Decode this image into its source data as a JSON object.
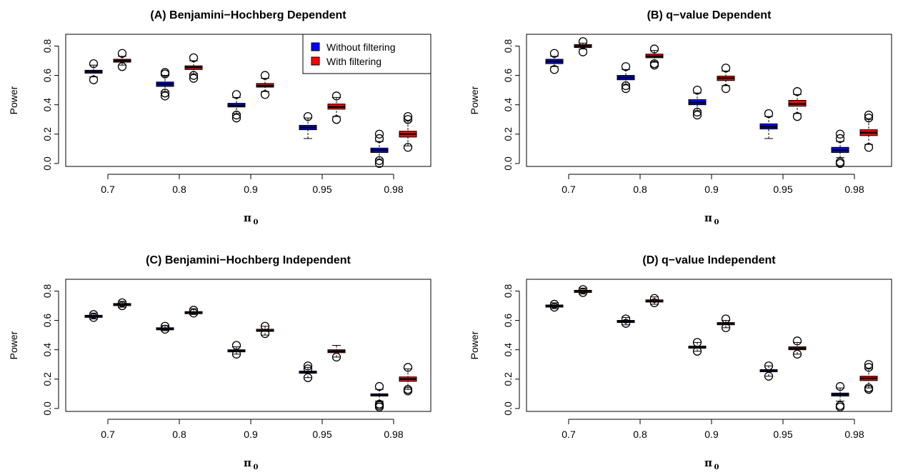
{
  "legend": {
    "items": [
      {
        "label": "Without filtering",
        "color": "#0000ff"
      },
      {
        "label": "With filtering",
        "color": "#ff0000"
      }
    ]
  },
  "chart_data": [
    {
      "type": "box",
      "title": "(A) Benjamini−Hochberg Dependent",
      "xlabel": "π",
      "xlabel_subscript": "0",
      "ylabel": "Power",
      "ylim": [
        -0.02,
        0.88
      ],
      "yticks": [
        "0.0",
        "0.2",
        "0.4",
        "0.6",
        "0.8"
      ],
      "categories": [
        "0.7",
        "0.8",
        "0.9",
        "0.95",
        "0.98"
      ],
      "show_legend": true,
      "legend_position": "top-right",
      "series": [
        {
          "name": "Without filtering",
          "color": "#0000ff",
          "boxes": [
            {
              "q1": 0.615,
              "median": 0.625,
              "q3": 0.635,
              "wlow": 0.59,
              "whigh": 0.67,
              "outliers": [
                0.57,
                0.68
              ]
            },
            {
              "q1": 0.525,
              "median": 0.54,
              "q3": 0.555,
              "wlow": 0.49,
              "whigh": 0.6,
              "outliers": [
                0.46,
                0.48,
                0.61,
                0.62
              ]
            },
            {
              "q1": 0.385,
              "median": 0.395,
              "q3": 0.41,
              "wlow": 0.34,
              "whigh": 0.45,
              "outliers": [
                0.31,
                0.33,
                0.47
              ]
            },
            {
              "q1": 0.23,
              "median": 0.245,
              "q3": 0.26,
              "wlow": 0.17,
              "whigh": 0.31,
              "outliers": [
                0.32
              ]
            },
            {
              "q1": 0.075,
              "median": 0.09,
              "q3": 0.105,
              "wlow": 0.03,
              "whigh": 0.15,
              "outliers": [
                0.0,
                0.02,
                0.17,
                0.2
              ]
            }
          ]
        },
        {
          "name": "With filtering",
          "color": "#ff0000",
          "boxes": [
            {
              "q1": 0.69,
              "median": 0.7,
              "q3": 0.71,
              "wlow": 0.67,
              "whigh": 0.73,
              "outliers": [
                0.66,
                0.75
              ]
            },
            {
              "q1": 0.64,
              "median": 0.655,
              "q3": 0.665,
              "wlow": 0.61,
              "whigh": 0.7,
              "outliers": [
                0.58,
                0.6,
                0.72
              ]
            },
            {
              "q1": 0.52,
              "median": 0.53,
              "q3": 0.545,
              "wlow": 0.49,
              "whigh": 0.58,
              "outliers": [
                0.47,
                0.6
              ]
            },
            {
              "q1": 0.37,
              "median": 0.385,
              "q3": 0.405,
              "wlow": 0.32,
              "whigh": 0.45,
              "outliers": [
                0.3,
                0.46
              ]
            },
            {
              "q1": 0.18,
              "median": 0.2,
              "q3": 0.22,
              "wlow": 0.12,
              "whigh": 0.29,
              "outliers": [
                0.11,
                0.3,
                0.32
              ]
            }
          ]
        }
      ]
    },
    {
      "type": "box",
      "title": "(B) q−value Dependent",
      "xlabel": "π",
      "xlabel_subscript": "0",
      "ylabel": "Power",
      "ylim": [
        -0.02,
        0.88
      ],
      "yticks": [
        "0.0",
        "0.2",
        "0.4",
        "0.6",
        "0.8"
      ],
      "categories": [
        "0.7",
        "0.8",
        "0.9",
        "0.95",
        "0.98"
      ],
      "show_legend": false,
      "series": [
        {
          "name": "Without filtering",
          "color": "#0000ff",
          "boxes": [
            {
              "q1": 0.68,
              "median": 0.695,
              "q3": 0.71,
              "wlow": 0.66,
              "whigh": 0.73,
              "outliers": [
                0.64,
                0.75
              ]
            },
            {
              "q1": 0.57,
              "median": 0.585,
              "q3": 0.6,
              "wlow": 0.54,
              "whigh": 0.64,
              "outliers": [
                0.51,
                0.53,
                0.66
              ]
            },
            {
              "q1": 0.4,
              "median": 0.415,
              "q3": 0.435,
              "wlow": 0.36,
              "whigh": 0.48,
              "outliers": [
                0.33,
                0.35,
                0.5
              ]
            },
            {
              "q1": 0.235,
              "median": 0.25,
              "q3": 0.27,
              "wlow": 0.17,
              "whigh": 0.32,
              "outliers": [
                0.34
              ]
            },
            {
              "q1": 0.075,
              "median": 0.09,
              "q3": 0.11,
              "wlow": 0.04,
              "whigh": 0.15,
              "outliers": [
                0.0,
                0.01,
                0.17,
                0.2
              ]
            }
          ]
        },
        {
          "name": "With filtering",
          "color": "#ff0000",
          "boxes": [
            {
              "q1": 0.79,
              "median": 0.8,
              "q3": 0.81,
              "wlow": 0.78,
              "whigh": 0.82,
              "outliers": [
                0.76,
                0.83
              ]
            },
            {
              "q1": 0.72,
              "median": 0.73,
              "q3": 0.745,
              "wlow": 0.69,
              "whigh": 0.77,
              "outliers": [
                0.67,
                0.68,
                0.78
              ]
            },
            {
              "q1": 0.565,
              "median": 0.58,
              "q3": 0.595,
              "wlow": 0.53,
              "whigh": 0.63,
              "outliers": [
                0.51,
                0.65
              ]
            },
            {
              "q1": 0.39,
              "median": 0.405,
              "q3": 0.43,
              "wlow": 0.34,
              "whigh": 0.47,
              "outliers": [
                0.32,
                0.49
              ]
            },
            {
              "q1": 0.19,
              "median": 0.21,
              "q3": 0.23,
              "wlow": 0.13,
              "whigh": 0.3,
              "outliers": [
                0.11,
                0.31,
                0.33
              ]
            }
          ]
        }
      ]
    },
    {
      "type": "box",
      "title": "(C) Benjamini−Hochberg Independent",
      "xlabel": "π",
      "xlabel_subscript": "0",
      "ylabel": "Power",
      "ylim": [
        -0.02,
        0.88
      ],
      "yticks": [
        "0.0",
        "0.2",
        "0.4",
        "0.6",
        "0.8"
      ],
      "categories": [
        "0.7",
        "0.8",
        "0.9",
        "0.95",
        "0.98"
      ],
      "show_legend": false,
      "series": [
        {
          "name": "Without filtering",
          "color": "#0000ff",
          "boxes": [
            {
              "q1": 0.625,
              "median": 0.63,
              "q3": 0.635,
              "wlow": 0.61,
              "whigh": 0.65,
              "outliers": [
                0.62,
                0.64
              ]
            },
            {
              "q1": 0.54,
              "median": 0.545,
              "q3": 0.55,
              "wlow": 0.53,
              "whigh": 0.565,
              "outliers": [
                0.54,
                0.56
              ]
            },
            {
              "q1": 0.39,
              "median": 0.395,
              "q3": 0.4,
              "wlow": 0.37,
              "whigh": 0.42,
              "outliers": [
                0.37,
                0.43
              ]
            },
            {
              "q1": 0.24,
              "median": 0.245,
              "q3": 0.255,
              "wlow": 0.21,
              "whigh": 0.28,
              "outliers": [
                0.21,
                0.27,
                0.29
              ]
            },
            {
              "q1": 0.085,
              "median": 0.09,
              "q3": 0.1,
              "wlow": 0.05,
              "whigh": 0.13,
              "outliers": [
                0.01,
                0.02,
                0.03,
                0.15
              ]
            }
          ]
        },
        {
          "name": "With filtering",
          "color": "#ff0000",
          "boxes": [
            {
              "q1": 0.705,
              "median": 0.71,
              "q3": 0.715,
              "wlow": 0.69,
              "whigh": 0.73,
              "outliers": [
                0.7,
                0.72
              ]
            },
            {
              "q1": 0.65,
              "median": 0.655,
              "q3": 0.66,
              "wlow": 0.64,
              "whigh": 0.68,
              "outliers": [
                0.65,
                0.67
              ]
            },
            {
              "q1": 0.525,
              "median": 0.53,
              "q3": 0.54,
              "wlow": 0.5,
              "whigh": 0.56,
              "outliers": [
                0.51,
                0.56
              ]
            },
            {
              "q1": 0.38,
              "median": 0.39,
              "q3": 0.4,
              "wlow": 0.35,
              "whigh": 0.43,
              "outliers": [
                0.35
              ]
            },
            {
              "q1": 0.185,
              "median": 0.2,
              "q3": 0.215,
              "wlow": 0.13,
              "whigh": 0.27,
              "outliers": [
                0.12,
                0.13,
                0.28
              ]
            }
          ]
        }
      ]
    },
    {
      "type": "box",
      "title": "(D) q−value Independent",
      "xlabel": "π",
      "xlabel_subscript": "0",
      "ylabel": "Power",
      "ylim": [
        -0.02,
        0.88
      ],
      "yticks": [
        "0.0",
        "0.2",
        "0.4",
        "0.6",
        "0.8"
      ],
      "categories": [
        "0.7",
        "0.8",
        "0.9",
        "0.95",
        "0.98"
      ],
      "show_legend": false,
      "series": [
        {
          "name": "Without filtering",
          "color": "#0000ff",
          "boxes": [
            {
              "q1": 0.695,
              "median": 0.7,
              "q3": 0.705,
              "wlow": 0.68,
              "whigh": 0.72,
              "outliers": [
                0.69,
                0.71
              ]
            },
            {
              "q1": 0.59,
              "median": 0.595,
              "q3": 0.6,
              "wlow": 0.57,
              "whigh": 0.62,
              "outliers": [
                0.58,
                0.61
              ]
            },
            {
              "q1": 0.415,
              "median": 0.42,
              "q3": 0.425,
              "wlow": 0.39,
              "whigh": 0.45,
              "outliers": [
                0.39,
                0.45
              ]
            },
            {
              "q1": 0.25,
              "median": 0.255,
              "q3": 0.265,
              "wlow": 0.22,
              "whigh": 0.29,
              "outliers": [
                0.22,
                0.29
              ]
            },
            {
              "q1": 0.085,
              "median": 0.095,
              "q3": 0.105,
              "wlow": 0.05,
              "whigh": 0.14,
              "outliers": [
                0.01,
                0.02,
                0.15
              ]
            }
          ]
        },
        {
          "name": "With filtering",
          "color": "#ff0000",
          "boxes": [
            {
              "q1": 0.795,
              "median": 0.8,
              "q3": 0.805,
              "wlow": 0.78,
              "whigh": 0.82,
              "outliers": [
                0.79,
                0.81
              ]
            },
            {
              "q1": 0.725,
              "median": 0.73,
              "q3": 0.74,
              "wlow": 0.71,
              "whigh": 0.76,
              "outliers": [
                0.72,
                0.75
              ]
            },
            {
              "q1": 0.57,
              "median": 0.58,
              "q3": 0.585,
              "wlow": 0.55,
              "whigh": 0.6,
              "outliers": [
                0.55,
                0.61
              ]
            },
            {
              "q1": 0.4,
              "median": 0.41,
              "q3": 0.42,
              "wlow": 0.37,
              "whigh": 0.45,
              "outliers": [
                0.37,
                0.46
              ]
            },
            {
              "q1": 0.19,
              "median": 0.205,
              "q3": 0.22,
              "wlow": 0.14,
              "whigh": 0.27,
              "outliers": [
                0.13,
                0.14,
                0.28,
                0.3
              ]
            }
          ]
        }
      ]
    }
  ]
}
